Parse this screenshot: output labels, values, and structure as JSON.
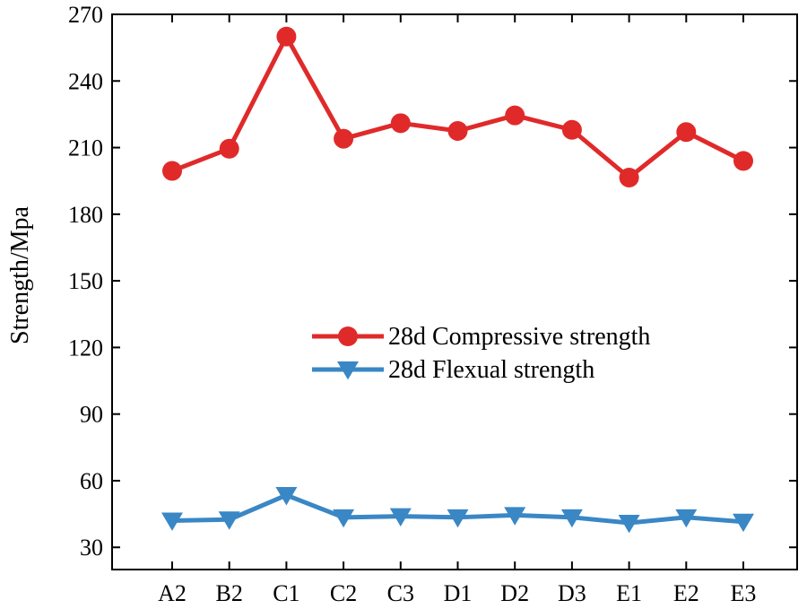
{
  "chart_data": {
    "type": "line",
    "title": "",
    "xlabel": "",
    "ylabel": "Strength/Mpa",
    "categories": [
      "A2",
      "B2",
      "C1",
      "C2",
      "C3",
      "D1",
      "D2",
      "D3",
      "E1",
      "E2",
      "E3"
    ],
    "ylim": [
      20,
      270
    ],
    "yticks": [
      30,
      60,
      90,
      120,
      150,
      180,
      210,
      240,
      270
    ],
    "ytick_labels": [
      "30",
      "60",
      "90",
      "120",
      "150",
      "180",
      "210",
      "240",
      "270"
    ],
    "grid": false,
    "legend_position": "center",
    "series": [
      {
        "name": "28d Compressive strength",
        "marker": "circle",
        "color": "#e02a2a",
        "values": [
          199.5,
          209.5,
          260,
          214,
          221,
          217.5,
          224.5,
          218,
          196.5,
          217,
          204
        ]
      },
      {
        "name": "28d Flexual strength",
        "marker": "triangle-down",
        "color": "#3a87c6",
        "values": [
          42,
          42.5,
          53.5,
          43.5,
          44,
          43.5,
          44.5,
          43.5,
          41,
          43.5,
          41.5
        ]
      }
    ]
  }
}
